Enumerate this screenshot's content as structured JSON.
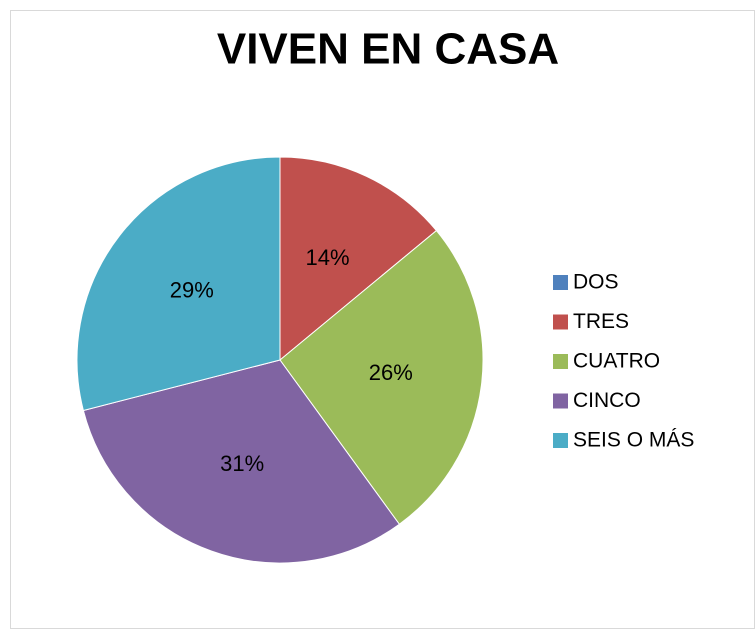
{
  "chart_data": {
    "type": "pie",
    "title": "VIVEN EN CASA",
    "categories": [
      "DOS",
      "TRES",
      "CUATRO",
      "CINCO",
      "SEIS O MÁS"
    ],
    "values": [
      0,
      14,
      26,
      31,
      29
    ],
    "value_labels": [
      null,
      "14%",
      "26%",
      "31%",
      "29%"
    ],
    "colors": [
      "#4f81bd",
      "#c0504d",
      "#9bbb59",
      "#8064a2",
      "#4bacc6"
    ],
    "legend": "right"
  }
}
